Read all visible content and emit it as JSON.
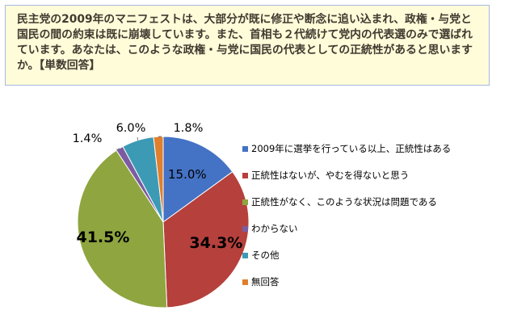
{
  "question": {
    "text": "民主党の2009年のマニフェストは、大部分が既に修正や断念に追い込まれ、政権・与党と国民の間の約束は既に崩壊しています。また、首相も２代続けて党内の代表選のみで選ばれています。あなたは、このような政権・与党に国民の代表としての正統性があると思いますか。【単数回答】"
  },
  "chart_data": {
    "type": "pie",
    "categories": [
      "2009年に選挙を行っている以上、正統性はある",
      "正統性はないが、やむを得ないと思う",
      "正統性がなく、このような状況は問題である",
      "わからない",
      "その他",
      "無回答"
    ],
    "values": [
      15.0,
      34.3,
      41.5,
      1.4,
      6.0,
      1.8
    ],
    "labels": [
      "15.0%",
      "34.3%",
      "41.5%",
      "1.4%",
      "6.0%",
      "1.8%"
    ],
    "colors": [
      "#4472c4",
      "#b5403c",
      "#8fa53f",
      "#7b5ca0",
      "#3d9ab5",
      "#e07f2d"
    ],
    "legend_position": "right"
  }
}
